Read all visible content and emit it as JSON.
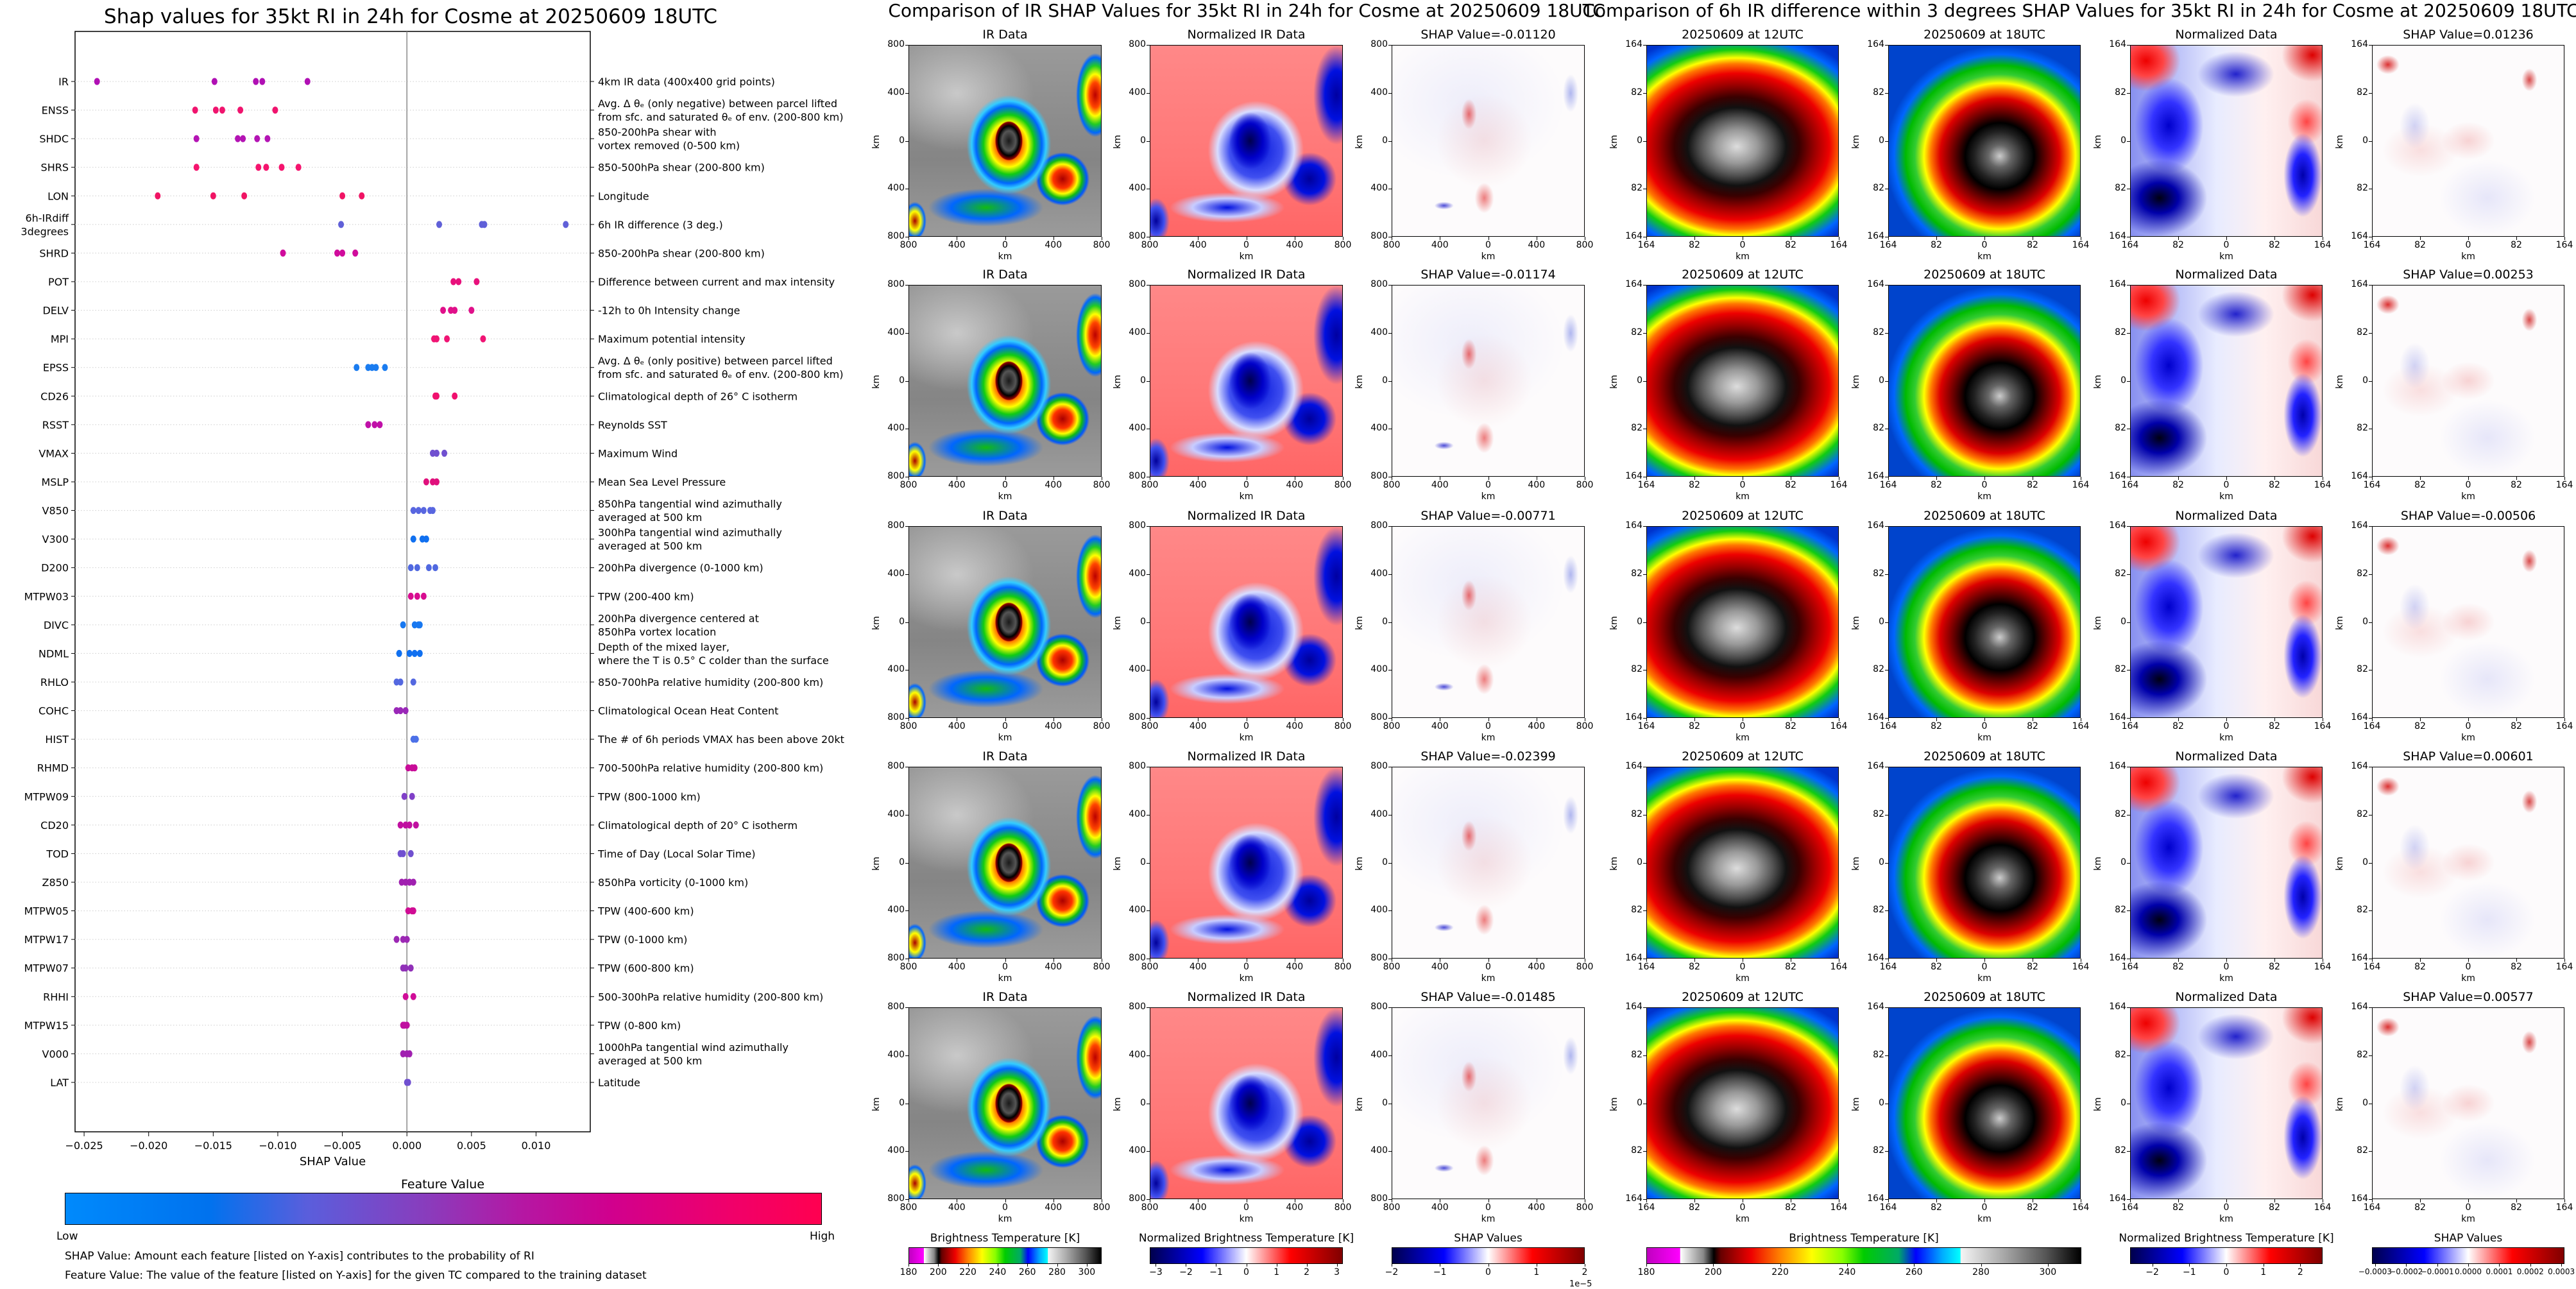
{
  "left": {
    "title": "Shap values for 35kt RI in 24h for Cosme at 20250609 18UTC",
    "colorbar": {
      "title": "Feature Value",
      "low": "Low",
      "high": "High"
    },
    "notes": [
      "SHAP Value: Amount each feature [listed on Y-axis] contributes to the probability of RI",
      "Feature Value: The value of the feature [listed on Y-axis] for the given TC compared to the training dataset"
    ]
  },
  "chart_data": {
    "type": "scatter",
    "title": "Shap values for 35kt RI in 24h for Cosme at 20250609 18UTC",
    "xlabel": "SHAP Value",
    "xlim": [
      -0.0257,
      0.0142
    ],
    "x_ticks": [
      -0.025,
      -0.02,
      -0.015,
      -0.01,
      -0.005,
      0.0,
      0.005,
      0.01
    ],
    "x_tick_labels": [
      "−0.025",
      "−0.020",
      "−0.015",
      "−0.010",
      "−0.005",
      "0.000",
      "0.005",
      "0.010"
    ],
    "grid": "horizontal dotted",
    "colorbar_low_color": "#008afc",
    "colorbar_high_color": "#ff0050",
    "features": [
      {
        "code": [
          "IR"
        ],
        "description": [
          "4km IR data (400x400 grid points)"
        ],
        "color": "#b010b4",
        "values": [
          -0.024,
          -0.0149,
          -0.0117,
          -0.0112,
          -0.0077
        ]
      },
      {
        "code": [
          "ENSS"
        ],
        "description": [
          "Avg. Δ θₑ (only negative) between parcel lifted",
          "from sfc. and saturated θₑ of env. (200-800 km)"
        ],
        "color": "#f0146e",
        "values": [
          -0.0164,
          -0.0148,
          -0.0143,
          -0.0129,
          -0.0102
        ]
      },
      {
        "code": [
          "SHDC"
        ],
        "description": [
          "850-200hPa shear with",
          "vortex removed (0-500 km)"
        ],
        "color": "#b414b4",
        "values": [
          -0.0163,
          -0.0131,
          -0.0127,
          -0.0116,
          -0.0108
        ]
      },
      {
        "code": [
          "SHRS"
        ],
        "description": [
          "850-500hPa shear (200-800 km)"
        ],
        "color": "#f5146e",
        "values": [
          -0.0163,
          -0.0115,
          -0.0109,
          -0.0097,
          -0.0084
        ]
      },
      {
        "code": [
          "LON"
        ],
        "description": [
          "Longitude"
        ],
        "color": "#f01464",
        "values": [
          -0.0193,
          -0.015,
          -0.0126,
          -0.005,
          -0.0035
        ]
      },
      {
        "code": [
          "6h-IRdiff",
          "3degrees"
        ],
        "description": [
          "6h IR difference (3 deg.)"
        ],
        "color": "#6060d8",
        "values": [
          -0.0051,
          0.0025,
          0.0058,
          0.006,
          0.0123
        ]
      },
      {
        "code": [
          "SHRD"
        ],
        "description": [
          "850-200hPa shear (200-800 km)"
        ],
        "color": "#d00c9c",
        "values": [
          -0.0096,
          -0.0054,
          -0.005,
          -0.004
        ]
      },
      {
        "code": [
          "POT"
        ],
        "description": [
          "Difference between current and max intensity"
        ],
        "color": "#e8107c",
        "values": [
          0.0036,
          0.004,
          0.0054
        ]
      },
      {
        "code": [
          "DELV"
        ],
        "description": [
          "-12h to 0h Intensity change"
        ],
        "color": "#e0108a",
        "values": [
          0.0028,
          0.0034,
          0.0037,
          0.005
        ]
      },
      {
        "code": [
          "MPI"
        ],
        "description": [
          "Maximum potential intensity"
        ],
        "color": "#f01474",
        "values": [
          0.0021,
          0.0023,
          0.0031,
          0.0059
        ]
      },
      {
        "code": [
          "EPSS"
        ],
        "description": [
          "Avg. Δ θₑ (only positive) between parcel lifted",
          "from sfc. and saturated θₑ of env. (200-800 km)"
        ],
        "color": "#1a7cf0",
        "values": [
          -0.0039,
          -0.003,
          -0.0027,
          -0.0024,
          -0.0017
        ]
      },
      {
        "code": [
          "CD26"
        ],
        "description": [
          "Climatological depth of 26° C isotherm"
        ],
        "color": "#f0106e",
        "values": [
          0.0022,
          0.0023,
          0.0037
        ]
      },
      {
        "code": [
          "RSST"
        ],
        "description": [
          "Reynolds SST"
        ],
        "color": "#c010a8",
        "values": [
          -0.003,
          -0.0025,
          -0.0021
        ]
      },
      {
        "code": [
          "VMAX"
        ],
        "description": [
          "Maximum Wind"
        ],
        "color": "#7050d0",
        "values": [
          0.002,
          0.0023,
          0.0029
        ]
      },
      {
        "code": [
          "MSLP"
        ],
        "description": [
          "Mean Sea Level Pressure"
        ],
        "color": "#e0107c",
        "values": [
          0.0015,
          0.002,
          0.0023
        ]
      },
      {
        "code": [
          "V850"
        ],
        "description": [
          "850hPa tangential wind azimuthally",
          "averaged at 500 km"
        ],
        "color": "#5866e0",
        "values": [
          0.0005,
          0.0009,
          0.0013,
          0.0018,
          0.002
        ]
      },
      {
        "code": [
          "V300"
        ],
        "description": [
          "300hPa tangential wind azimuthally",
          "averaged at 500 km"
        ],
        "color": "#1070f0",
        "values": [
          0.0005,
          0.0012,
          0.0015
        ]
      },
      {
        "code": [
          "D200"
        ],
        "description": [
          "200hPa divergence (0-1000 km)"
        ],
        "color": "#5068e0",
        "values": [
          0.0003,
          0.0008,
          0.0017,
          0.0022
        ]
      },
      {
        "code": [
          "MTPW03"
        ],
        "description": [
          "TPW (200-400 km)"
        ],
        "color": "#d80c90",
        "values": [
          0.0003,
          0.0008,
          0.0013
        ]
      },
      {
        "code": [
          "DIVC"
        ],
        "description": [
          "200hPa divergence centered at",
          "850hPa vortex location"
        ],
        "color": "#1878f0",
        "values": [
          -0.0003,
          0.0006,
          0.0009,
          0.001
        ]
      },
      {
        "code": [
          "NDML"
        ],
        "description": [
          "Depth of the mixed layer,",
          "where the T is 0.5° C colder than the surface"
        ],
        "color": "#1070f0",
        "values": [
          -0.0006,
          0.0002,
          0.0006,
          0.001
        ]
      },
      {
        "code": [
          "RHLO"
        ],
        "description": [
          "850-700hPa relative humidity (200-800 km)"
        ],
        "color": "#5468e0",
        "values": [
          -0.0008,
          -0.0005,
          0.0005
        ]
      },
      {
        "code": [
          "COHC"
        ],
        "description": [
          "Climatological Ocean Heat Content"
        ],
        "color": "#9a28b8",
        "values": [
          -0.0008,
          -0.0005,
          -0.0001
        ]
      },
      {
        "code": [
          "HIST"
        ],
        "description": [
          "The # of 6h periods VMAX has been above 20kt"
        ],
        "color": "#4c70e8",
        "values": [
          0.0005,
          0.0007
        ]
      },
      {
        "code": [
          "RHMD"
        ],
        "description": [
          "700-500hPa relative humidity (200-800 km)"
        ],
        "color": "#c80c98",
        "values": [
          0.0001,
          0.0004,
          0.0006
        ]
      },
      {
        "code": [
          "MTPW09"
        ],
        "description": [
          "TPW (800-1000 km)"
        ],
        "color": "#8040c8",
        "values": [
          -0.0002,
          0.0004
        ]
      },
      {
        "code": [
          "CD20"
        ],
        "description": [
          "Climatological depth of 20° C isotherm"
        ],
        "color": "#c010a0",
        "values": [
          -0.0005,
          -0.0001,
          0.0002,
          0.0007
        ]
      },
      {
        "code": [
          "TOD"
        ],
        "description": [
          "Time of Day (Local Solar Time)"
        ],
        "color": "#7050d0",
        "values": [
          -0.0005,
          -0.0003,
          0.0003
        ]
      },
      {
        "code": [
          "Z850"
        ],
        "description": [
          "850hPa vorticity (0-1000 km)"
        ],
        "color": "#a020b0",
        "values": [
          -0.0004,
          -0.0001,
          0.0002,
          0.0005
        ]
      },
      {
        "code": [
          "MTPW05"
        ],
        "description": [
          "TPW (400-600 km)"
        ],
        "color": "#d00c94",
        "values": [
          0.0001,
          0.0004,
          0.0005
        ]
      },
      {
        "code": [
          "MTPW17"
        ],
        "description": [
          "TPW (0-1000 km)"
        ],
        "color": "#9c28b4",
        "values": [
          -0.0008,
          -0.0003,
          0.0
        ]
      },
      {
        "code": [
          "MTPW07"
        ],
        "description": [
          "TPW (600-800 km)"
        ],
        "color": "#9030b8",
        "values": [
          -0.0003,
          -0.0001,
          0.0003
        ]
      },
      {
        "code": [
          "RHHI"
        ],
        "description": [
          "500-300hPa relative humidity (200-800 km)"
        ],
        "color": "#d00c98",
        "values": [
          -0.0001,
          0.0005
        ]
      },
      {
        "code": [
          "MTPW15"
        ],
        "description": [
          "TPW (0-800 km)"
        ],
        "color": "#c010a0",
        "values": [
          -0.0003,
          -0.0002,
          0.0
        ]
      },
      {
        "code": [
          "V000"
        ],
        "description": [
          "1000hPa tangential wind azimuthally",
          "averaged at 500 km"
        ],
        "color": "#a020b0",
        "values": [
          -0.0003,
          0.0,
          0.0002
        ]
      },
      {
        "code": [
          "LAT"
        ],
        "description": [
          "Latitude"
        ],
        "color": "#7050d0",
        "values": [
          0.0,
          0.0001
        ]
      }
    ]
  },
  "ir_section": {
    "title": "Comparison of IR SHAP Values for 35kt RI in 24h for Cosme at 20250609 18UTC",
    "panel_titles": [
      "IR Data",
      "Normalized IR Data"
    ],
    "ticks": [
      "800",
      "400",
      "0",
      "400",
      "800"
    ],
    "axis_label": "km",
    "rows": [
      {
        "shap_title": "SHAP Value=-0.01120"
      },
      {
        "shap_title": "SHAP Value=-0.01174"
      },
      {
        "shap_title": "SHAP Value=-0.00771"
      },
      {
        "shap_title": "SHAP Value=-0.02399"
      },
      {
        "shap_title": "SHAP Value=-0.01485"
      }
    ],
    "colorbars": [
      {
        "title": "Brightness Temperature [K]",
        "style": "bt",
        "range": [
          180,
          310
        ],
        "ticks": [
          180,
          200,
          220,
          240,
          260,
          280,
          300
        ],
        "labels": [
          "180",
          "200",
          "220",
          "240",
          "260",
          "280",
          "300"
        ]
      },
      {
        "title": "Normalized Brightness Temperature [K]",
        "style": "seis",
        "range": [
          -3.2,
          3.2
        ],
        "ticks": [
          -3,
          -2,
          -1,
          0,
          1,
          2,
          3
        ],
        "labels": [
          "−3",
          "−2",
          "−1",
          "0",
          "1",
          "2",
          "3"
        ]
      },
      {
        "title": "SHAP Values",
        "style": "seis",
        "range": [
          -2,
          2
        ],
        "ticks": [
          -2,
          -1,
          0,
          1,
          2
        ],
        "labels": [
          "−2",
          "−1",
          "0",
          "1",
          "2"
        ],
        "offset": "1e−5"
      }
    ]
  },
  "diff_section": {
    "title": "Comparison of 6h IR difference within 3 degrees SHAP Values for 35kt RI in 24h for Cosme at 20250609 18UTC",
    "panel_titles": [
      "20250609 at 12UTC",
      "20250609 at 18UTC",
      "Normalized Data"
    ],
    "ticks": [
      "164",
      "82",
      "0",
      "82",
      "164"
    ],
    "axis_label": "km",
    "rows": [
      {
        "shap_title": "SHAP Value=0.01236"
      },
      {
        "shap_title": "SHAP Value=0.00253"
      },
      {
        "shap_title": "SHAP Value=-0.00506"
      },
      {
        "shap_title": "SHAP Value=0.00601"
      },
      {
        "shap_title": "SHAP Value=0.00577"
      }
    ],
    "colorbars": [
      {
        "title": "Brightness Temperature [K]",
        "style": "bt",
        "range": [
          180,
          310
        ],
        "ticks": [
          180,
          200,
          220,
          240,
          260,
          280,
          300
        ],
        "labels": [
          "180",
          "200",
          "220",
          "240",
          "260",
          "280",
          "300"
        ]
      },
      {
        "title": "Normalized Brightness Temperature [K]",
        "style": "seis",
        "range": [
          -2.6,
          2.6
        ],
        "ticks": [
          -2,
          -1,
          0,
          1,
          2
        ],
        "labels": [
          "−2",
          "−1",
          "0",
          "1",
          "2"
        ]
      },
      {
        "title": "SHAP Values",
        "style": "seis",
        "range": [
          -0.00031,
          0.00031
        ],
        "ticks": [
          -0.0003,
          -0.0002,
          -0.0001,
          0,
          0.0001,
          0.0002,
          0.0003
        ],
        "labels": [
          "−0.0003",
          "−0.0002",
          "−0.0001",
          "0.0000",
          "0.0001",
          "0.0002",
          "0.0003"
        ]
      }
    ]
  }
}
